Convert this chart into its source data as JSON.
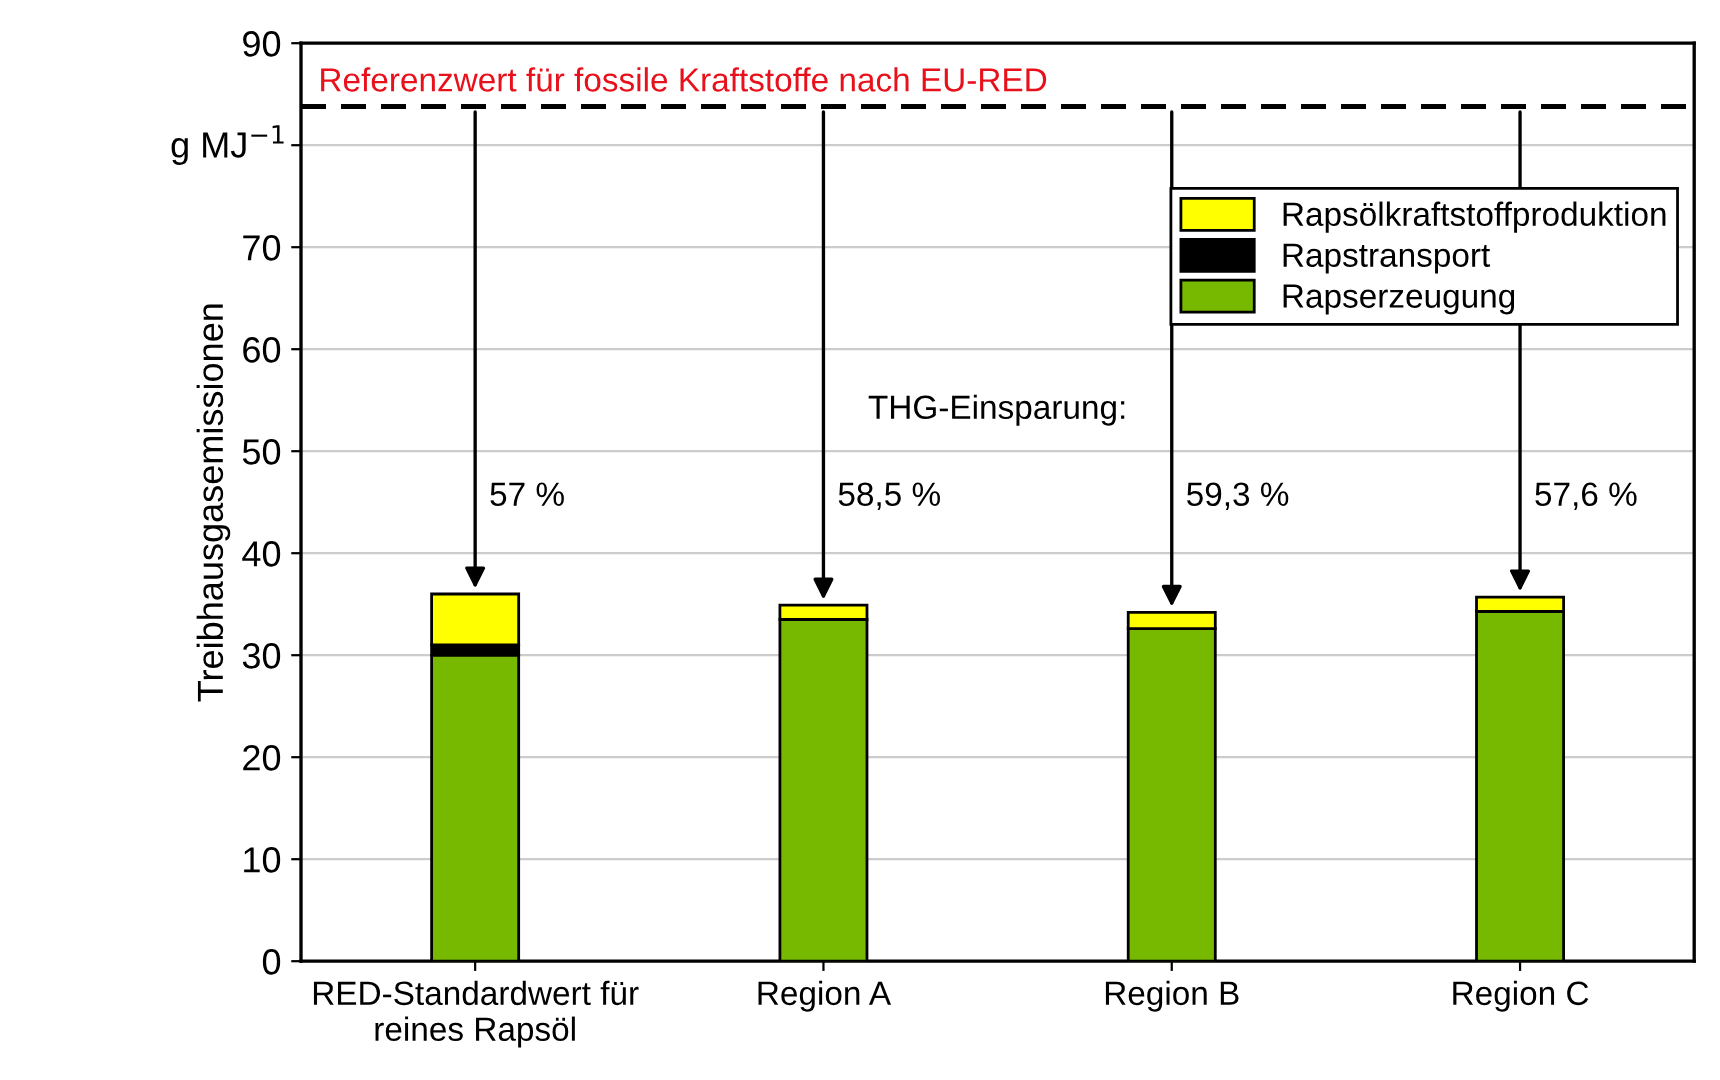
{
  "chart_data": {
    "type": "bar",
    "stacked": true,
    "ylabel": "Treibhausgasemissionen",
    "categories": [
      "RED-Standardwert für\nreines Rapsöl",
      "Region A",
      "Region B",
      "Region C"
    ],
    "series": [
      {
        "name": "Rapserzeugung",
        "color": "#76b900",
        "values": [
          30.0,
          33.5,
          32.6,
          34.3
        ]
      },
      {
        "name": "Rapstransport",
        "color": "#000000",
        "values": [
          1.0,
          0,
          0,
          0
        ]
      },
      {
        "name": "Rapsölkraftstoffproduktion",
        "color": "#ffff00",
        "values": [
          5.0,
          1.4,
          1.6,
          1.4
        ]
      }
    ],
    "ylim": [
      0,
      90
    ],
    "yticks": [
      0,
      10,
      20,
      30,
      40,
      50,
      60,
      70,
      {
        "value": 80,
        "label": null
      },
      90
    ],
    "grid": "y",
    "legend": "top right",
    "ref_lines": [
      {
        "axis": "y",
        "value": 83.8,
        "label": "Referenzwert für fossile Kraftstoffe nach EU-RED",
        "color": "#000000",
        "line_style": "dashed"
      }
    ],
    "annotations": [
      "g MJ$^{−1}$",
      "THG-Einsparung:",
      "57 %",
      "58,5 %",
      "59,3 %",
      "57,6 %"
    ]
  }
}
